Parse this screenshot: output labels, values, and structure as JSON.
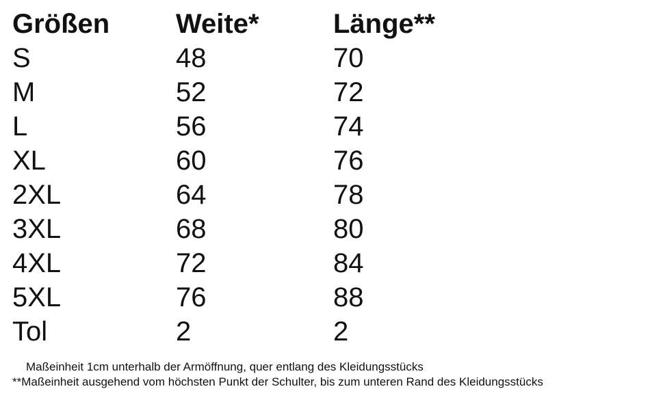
{
  "table": {
    "header": [
      "Größen",
      "Weite*",
      "Länge**"
    ],
    "rows": [
      [
        "S",
        48,
        70
      ],
      [
        "M",
        52,
        72
      ],
      [
        "L",
        56,
        74
      ],
      [
        "XL",
        60,
        76
      ],
      [
        "2XL",
        64,
        78
      ],
      [
        "3XL",
        68,
        80
      ],
      [
        "4XL",
        72,
        84
      ],
      [
        "5XL",
        76,
        88
      ],
      [
        "Tol",
        2,
        2
      ]
    ]
  },
  "footnotes": [
    "Maßeinheit 1cm unterhalb der Armöffnung, quer entlang des Kleidungsstücks",
    "**Maßeinheit ausgehend vom höchsten Punkt der Schulter, bis zum unteren Rand des Kleidungsstücks"
  ]
}
